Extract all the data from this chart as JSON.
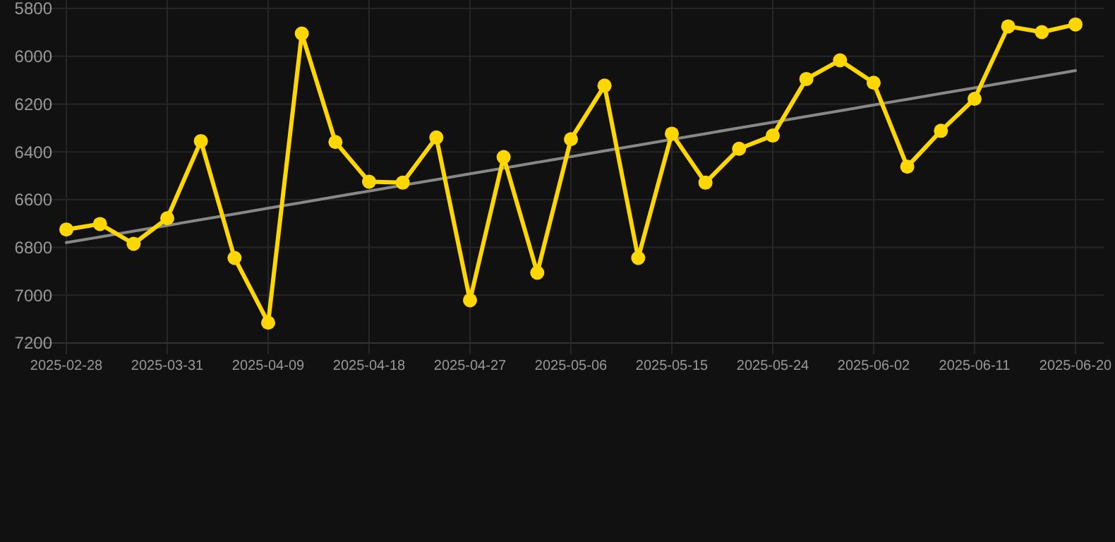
{
  "chart_data": {
    "type": "line",
    "categories": [
      "2025-02-28",
      null,
      null,
      "2025-03-31",
      null,
      null,
      "2025-04-09",
      null,
      null,
      "2025-04-18",
      null,
      null,
      "2025-04-27",
      null,
      null,
      "2025-05-06",
      null,
      null,
      "2025-05-15",
      null,
      null,
      "2025-05-24",
      null,
      null,
      "2025-06-02",
      null,
      null,
      "2025-06-11",
      null,
      null,
      "2025-06-20"
    ],
    "ylim": [
      7200,
      5800
    ],
    "yticks": [
      5800,
      6000,
      6200,
      6400,
      6600,
      6800,
      7000,
      7200
    ],
    "grid": true,
    "series": [
      {
        "color": "#ffd700",
        "marker": "circle",
        "values": [
          6725,
          6702,
          6785,
          6678,
          6355,
          6844,
          7115,
          5905,
          6359,
          6525,
          6529,
          6340,
          7021,
          6422,
          6906,
          6347,
          6123,
          6844,
          6324,
          6529,
          6387,
          6332,
          6095,
          6017,
          6111,
          6462,
          6312,
          6178,
          5875,
          5899,
          5867
        ]
      },
      {
        "color": "#888888",
        "marker": "none",
        "values": [
          6780,
          6756,
          6732,
          6708,
          6684,
          6660,
          6636,
          6612,
          6588,
          6564,
          6540,
          6516,
          6492,
          6468,
          6444,
          6420,
          6396,
          6372,
          6348,
          6324,
          6300,
          6276,
          6252,
          6228,
          6204,
          6180,
          6156,
          6132,
          6108,
          6084,
          6060
        ]
      }
    ]
  }
}
